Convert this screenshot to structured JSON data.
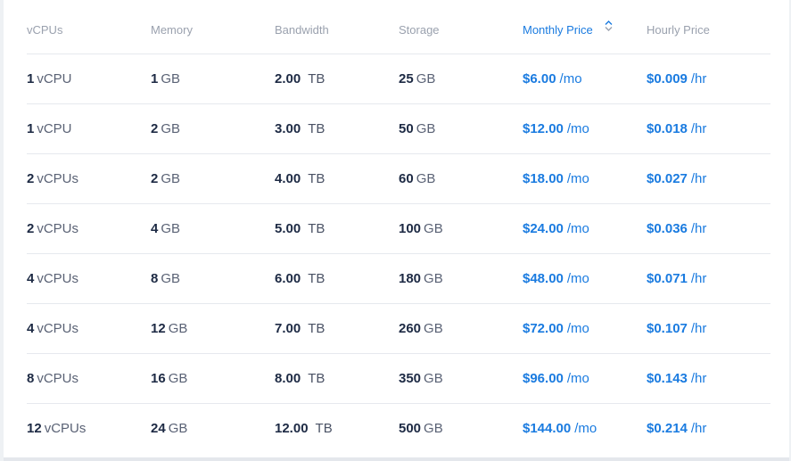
{
  "headers": {
    "vcpus": "vCPUs",
    "memory": "Memory",
    "bandwidth": "Bandwidth",
    "storage": "Storage",
    "monthly": "Monthly Price",
    "hourly": "Hourly Price"
  },
  "sort": {
    "column": "monthly",
    "icon": "sort-updown-icon",
    "accent": "#1a7be0"
  },
  "rows": [
    {
      "vcpu_n": "1",
      "vcpu_u": "vCPU",
      "mem_n": "1",
      "mem_u": "GB",
      "bw_n": "2.00",
      "bw_u": "TB",
      "st_n": "25",
      "st_u": "GB",
      "mo_n": "$6.00",
      "mo_u": "/mo",
      "hr_n": "$0.009",
      "hr_u": "/hr"
    },
    {
      "vcpu_n": "1",
      "vcpu_u": "vCPU",
      "mem_n": "2",
      "mem_u": "GB",
      "bw_n": "3.00",
      "bw_u": "TB",
      "st_n": "50",
      "st_u": "GB",
      "mo_n": "$12.00",
      "mo_u": "/mo",
      "hr_n": "$0.018",
      "hr_u": "/hr"
    },
    {
      "vcpu_n": "2",
      "vcpu_u": "vCPUs",
      "mem_n": "2",
      "mem_u": "GB",
      "bw_n": "4.00",
      "bw_u": "TB",
      "st_n": "60",
      "st_u": "GB",
      "mo_n": "$18.00",
      "mo_u": "/mo",
      "hr_n": "$0.027",
      "hr_u": "/hr"
    },
    {
      "vcpu_n": "2",
      "vcpu_u": "vCPUs",
      "mem_n": "4",
      "mem_u": "GB",
      "bw_n": "5.00",
      "bw_u": "TB",
      "st_n": "100",
      "st_u": "GB",
      "mo_n": "$24.00",
      "mo_u": "/mo",
      "hr_n": "$0.036",
      "hr_u": "/hr"
    },
    {
      "vcpu_n": "4",
      "vcpu_u": "vCPUs",
      "mem_n": "8",
      "mem_u": "GB",
      "bw_n": "6.00",
      "bw_u": "TB",
      "st_n": "180",
      "st_u": "GB",
      "mo_n": "$48.00",
      "mo_u": "/mo",
      "hr_n": "$0.071",
      "hr_u": "/hr"
    },
    {
      "vcpu_n": "4",
      "vcpu_u": "vCPUs",
      "mem_n": "12",
      "mem_u": "GB",
      "bw_n": "7.00",
      "bw_u": "TB",
      "st_n": "260",
      "st_u": "GB",
      "mo_n": "$72.00",
      "mo_u": "/mo",
      "hr_n": "$0.107",
      "hr_u": "/hr"
    },
    {
      "vcpu_n": "8",
      "vcpu_u": "vCPUs",
      "mem_n": "16",
      "mem_u": "GB",
      "bw_n": "8.00",
      "bw_u": "TB",
      "st_n": "350",
      "st_u": "GB",
      "mo_n": "$96.00",
      "mo_u": "/mo",
      "hr_n": "$0.143",
      "hr_u": "/hr"
    },
    {
      "vcpu_n": "12",
      "vcpu_u": "vCPUs",
      "mem_n": "24",
      "mem_u": "GB",
      "bw_n": "12.00",
      "bw_u": "TB",
      "st_n": "500",
      "st_u": "GB",
      "mo_n": "$144.00",
      "mo_u": "/mo",
      "hr_n": "$0.214",
      "hr_u": "/hr"
    }
  ]
}
